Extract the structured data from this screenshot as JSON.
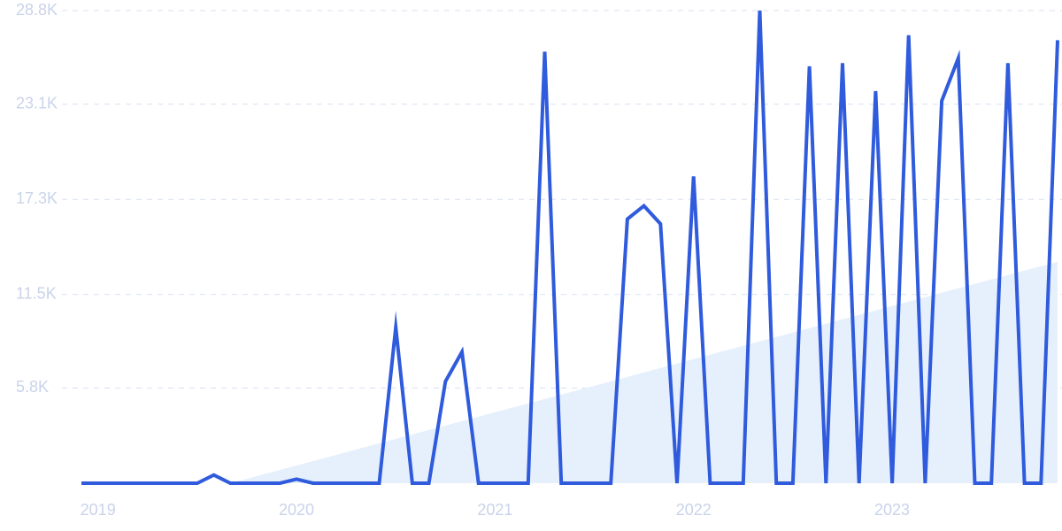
{
  "chart_data": {
    "type": "line",
    "categories": [
      null,
      "2019",
      null,
      null,
      null,
      null,
      null,
      null,
      null,
      null,
      null,
      null,
      null,
      "2020",
      null,
      null,
      null,
      null,
      null,
      null,
      null,
      null,
      null,
      null,
      null,
      "2021",
      null,
      null,
      null,
      null,
      null,
      null,
      null,
      null,
      null,
      null,
      null,
      "2022",
      null,
      null,
      null,
      null,
      null,
      null,
      null,
      null,
      null,
      null,
      null,
      "2023",
      null,
      null,
      null,
      null,
      null,
      null,
      null,
      null,
      null,
      null
    ],
    "series": [
      {
        "color": "#2f5bdc",
        "values": [
          0,
          0,
          0,
          0,
          0,
          0,
          0,
          0,
          0.5,
          0,
          0,
          0,
          0,
          0.25,
          0,
          0,
          0,
          0,
          0,
          9.5,
          0,
          0,
          6.2,
          8.0,
          0,
          0,
          0,
          0,
          26.3,
          0,
          0,
          0,
          0,
          16.1,
          16.9,
          15.8,
          0,
          18.7,
          0,
          0,
          0,
          28.8,
          0,
          0,
          25.4,
          0,
          25.6,
          0,
          23.9,
          0,
          27.3,
          0,
          23.3,
          25.9,
          0,
          0,
          25.6,
          0,
          0,
          27.0
        ]
      },
      {
        "color": "#e6f0fc",
        "values": [
          0,
          0,
          0,
          0,
          0,
          0,
          0,
          0,
          0,
          0,
          0.27,
          0.54,
          0.81,
          1.08,
          1.35,
          1.62,
          1.89,
          2.16,
          2.43,
          2.7,
          2.97,
          3.24,
          3.51,
          3.78,
          4.05,
          4.32,
          4.59,
          4.86,
          5.13,
          5.4,
          5.67,
          5.94,
          6.21,
          6.48,
          6.75,
          7.02,
          7.29,
          7.56,
          7.83,
          8.1,
          8.37,
          8.64,
          8.91,
          9.18,
          9.45,
          9.72,
          9.99,
          10.26,
          10.53,
          10.8,
          11.07,
          11.34,
          11.61,
          11.88,
          12.15,
          12.42,
          12.69,
          12.96,
          13.23,
          13.5
        ]
      }
    ],
    "ylim": [
      0,
      28.8
    ],
    "yticks": [
      {
        "value": 5.8,
        "label": "5.8K"
      },
      {
        "value": 11.5,
        "label": "11.5K"
      },
      {
        "value": 17.3,
        "label": "17.3K"
      },
      {
        "value": 23.1,
        "label": "23.1K"
      },
      {
        "value": 28.8,
        "label": "28.8K"
      }
    ],
    "grid": true
  }
}
